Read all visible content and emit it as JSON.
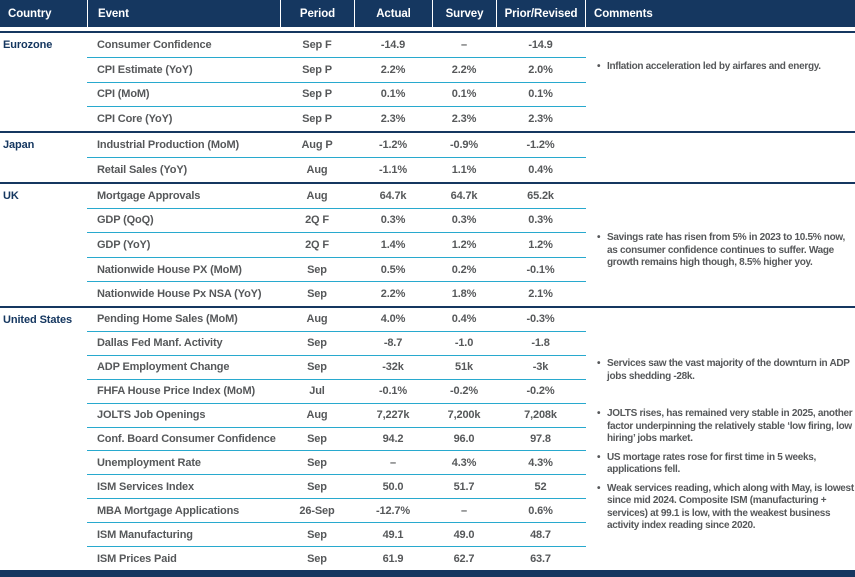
{
  "header": {
    "columns": [
      "Country",
      "Event",
      "Period",
      "Actual",
      "Survey",
      "Prior/Revised",
      "Comments"
    ]
  },
  "bullet_icon": "•",
  "groups": [
    {
      "country": "Eurozone",
      "rows": [
        {
          "event": "Consumer Confidence",
          "period": "Sep F",
          "actual": "-14.9",
          "survey": "–",
          "prior": "-14.9"
        },
        {
          "event": "CPI Estimate (YoY)",
          "period": "Sep P",
          "actual": "2.2%",
          "survey": "2.2%",
          "prior": "2.0%"
        },
        {
          "event": "CPI (MoM)",
          "period": "Sep P",
          "actual": "0.1%",
          "survey": "0.1%",
          "prior": "0.1%"
        },
        {
          "event": "CPI Core (YoY)",
          "period": "Sep P",
          "actual": "2.3%",
          "survey": "2.3%",
          "prior": "2.3%"
        }
      ],
      "comments": [
        "Inflation acceleration led by airfares and energy."
      ]
    },
    {
      "country": "Japan",
      "rows": [
        {
          "event": "Industrial Production (MoM)",
          "period": "Aug P",
          "actual": "-1.2%",
          "survey": "-0.9%",
          "prior": "-1.2%"
        },
        {
          "event": "Retail Sales (YoY)",
          "period": "Aug",
          "actual": "-1.1%",
          "survey": "1.1%",
          "prior": "0.4%"
        }
      ],
      "comments": []
    },
    {
      "country": "UK",
      "rows": [
        {
          "event": "Mortgage Approvals",
          "period": "Aug",
          "actual": "64.7k",
          "survey": "64.7k",
          "prior": "65.2k"
        },
        {
          "event": "GDP (QoQ)",
          "period": "2Q F",
          "actual": "0.3%",
          "survey": "0.3%",
          "prior": "0.3%"
        },
        {
          "event": "GDP (YoY)",
          "period": "2Q F",
          "actual": "1.4%",
          "survey": "1.2%",
          "prior": "1.2%"
        },
        {
          "event": "Nationwide House PX (MoM)",
          "period": "Sep",
          "actual": "0.5%",
          "survey": "0.2%",
          "prior": "-0.1%"
        },
        {
          "event": "Nationwide House Px NSA (YoY)",
          "period": "Sep",
          "actual": "2.2%",
          "survey": "1.8%",
          "prior": "2.1%"
        }
      ],
      "comments": [
        "Savings rate has risen from 5% in 2023 to 10.5% now, as consumer confidence continues to suffer. Wage growth remains high though, 8.5% higher yoy."
      ]
    },
    {
      "country": "United States",
      "rows": [
        {
          "event": "Pending Home Sales (MoM)",
          "period": "Aug",
          "actual": "4.0%",
          "survey": "0.4%",
          "prior": "-0.3%"
        },
        {
          "event": "Dallas Fed Manf. Activity",
          "period": "Sep",
          "actual": "-8.7",
          "survey": "-1.0",
          "prior": "-1.8"
        },
        {
          "event": "ADP Employment Change",
          "period": "Sep",
          "actual": "-32k",
          "survey": "51k",
          "prior": "-3k"
        },
        {
          "event": "FHFA House Price Index (MoM)",
          "period": "Jul",
          "actual": "-0.1%",
          "survey": "-0.2%",
          "prior": "-0.2%"
        },
        {
          "event": "JOLTS Job Openings",
          "period": "Aug",
          "actual": "7,227k",
          "survey": "7,200k",
          "prior": "7,208k"
        },
        {
          "event": "Conf. Board Consumer Confidence",
          "period": "Sep",
          "actual": "94.2",
          "survey": "96.0",
          "prior": "97.8"
        },
        {
          "event": "Unemployment Rate",
          "period": "Sep",
          "actual": "–",
          "survey": "4.3%",
          "prior": "4.3%"
        },
        {
          "event": "ISM Services Index",
          "period": "Sep",
          "actual": "50.0",
          "survey": "51.7",
          "prior": "52"
        },
        {
          "event": "MBA Mortgage Applications",
          "period": "26-Sep",
          "actual": "-12.7%",
          "survey": "–",
          "prior": "0.6%"
        },
        {
          "event": "ISM Manufacturing",
          "period": "Sep",
          "actual": "49.1",
          "survey": "49.0",
          "prior": "48.7"
        },
        {
          "event": "ISM Prices Paid",
          "period": "Sep",
          "actual": "61.9",
          "survey": "62.7",
          "prior": "63.7"
        }
      ],
      "comments": [
        "Services saw the vast majority of the downturn in ADP jobs shedding -28k.",
        "JOLTS rises, has remained very stable in 2025, another factor underpinning the relatively stable ‘low firing, low hiring’ jobs market.",
        "US mortage rates rose for first time in 5 weeks, applications fell.",
        "Weak services reading, which along with May, is lowest since mid 2024. Composite ISM (manufacturing + services) at 99.1 is low, with the weakest business activity index reading since 2020."
      ]
    }
  ],
  "colors": {
    "navy": "#153760",
    "cyan_separator": "#28A9CE",
    "text_gray": "#56585A",
    "header_text": "#FFFFFF",
    "background": "#FFFFFF"
  }
}
